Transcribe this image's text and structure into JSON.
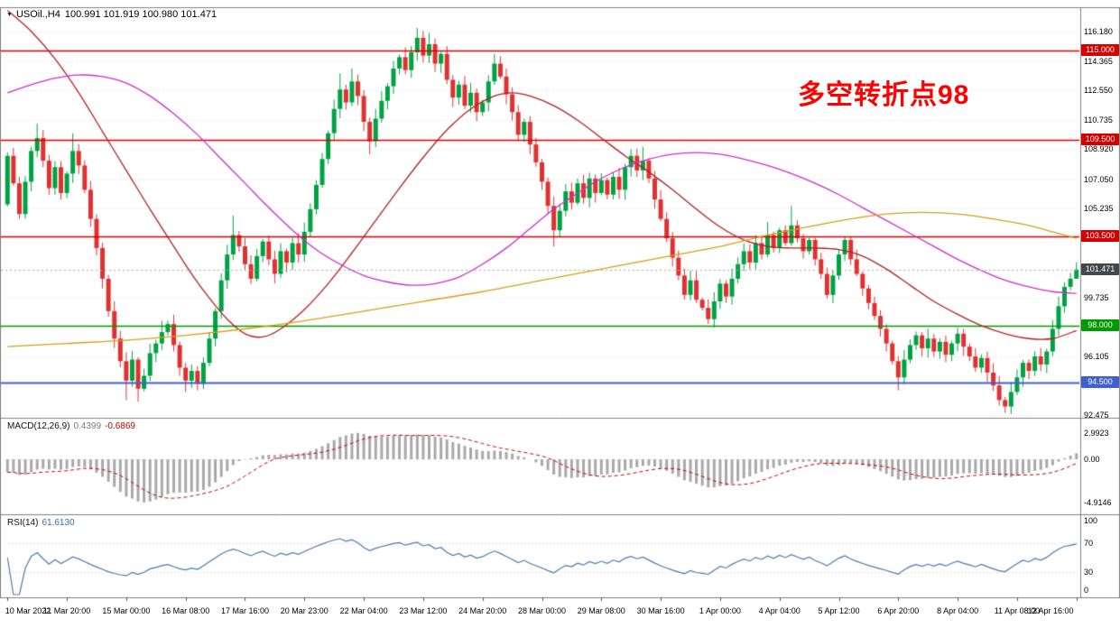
{
  "header": {
    "symbol_period": "USOil.,H4",
    "ohlc": "100.991 101.919 100.980 101.471"
  },
  "annotation": {
    "text": "多空转折点98"
  },
  "macd_label": {
    "name": "MACD(12,26,9)",
    "main": "0.4399",
    "signal": "-0.6869"
  },
  "rsi_label": {
    "name": "RSI(14)",
    "value": "61.6130"
  },
  "colors": {
    "up": "#00A243",
    "down": "#E03131",
    "ma_red": "#B22222",
    "ma_magenta": "#CC2ECC",
    "ma_orange": "#D4A017",
    "hline_red": "#D40000",
    "hline_green": "#009900",
    "hline_blue": "#4060D0",
    "macd_hist": "#A9A9A9",
    "macd_signal": "#CC0000",
    "rsi_line": "#4A7AB5",
    "annotation": "#FF0000",
    "badge_current": "#44484C",
    "grid": "#DDDDDD",
    "frame": "#7F7F7F"
  },
  "chart_data": {
    "type": "candlestick",
    "title": "USOil H4 candlestick chart with MACD(12,26,9) and RSI(14)",
    "symbol": "USOil",
    "timeframe": "H4",
    "y_axis_ticks": [
      "116.180",
      "114.365",
      "112.550",
      "110.735",
      "108.920",
      "107.050",
      "105.235",
      "99.735",
      "96.105",
      "92.475"
    ],
    "y_range": [
      92.36,
      116.74
    ],
    "x_tick_labels": [
      "10 Mar 2022",
      "11 Mar 20:00",
      "15 Mar 00:00",
      "16 Mar 08:00",
      "17 Mar 16:00",
      "20 Mar 23:00",
      "22 Mar 04:00",
      "23 Mar 12:00",
      "24 Mar 20:00",
      "28 Mar 00:00",
      "29 Mar 08:00",
      "30 Mar 16:00",
      "1 Apr 00:00",
      "4 Apr 04:00",
      "5 Apr 12:00",
      "6 Apr 20:00",
      "8 Apr 04:00",
      "11 Apr 08:00",
      "12 Apr 16:00"
    ],
    "current_price": {
      "value": 101.471,
      "label": "101.471"
    },
    "horizontal_lines": [
      {
        "price": 115.0,
        "label": "115.000",
        "color_key": "hline_red"
      },
      {
        "price": 109.5,
        "label": "109.500",
        "color_key": "hline_red"
      },
      {
        "price": 103.5,
        "label": "103.500",
        "color_key": "hline_red"
      },
      {
        "price": 98.0,
        "label": "98.000",
        "color_key": "hline_green"
      },
      {
        "price": 94.5,
        "label": "94.500",
        "color_key": "hline_blue"
      }
    ],
    "candles": {
      "first_open": 105.5,
      "closes": [
        108.5,
        106.8,
        104.9,
        106.9,
        108.8,
        109.6,
        108.2,
        106.5,
        107.8,
        106.2,
        107.4,
        108.8,
        107.9,
        106.4,
        104.6,
        102.8,
        100.9,
        98.9,
        97.2,
        95.8,
        94.6,
        95.9,
        94.1,
        94.9,
        96.3,
        96.9,
        97.6,
        98.1,
        96.8,
        95.4,
        94.6,
        95.2,
        94.4,
        95.7,
        97.2,
        98.9,
        100.8,
        102.4,
        103.6,
        102.9,
        101.8,
        100.9,
        102.3,
        103.2,
        102.1,
        101.2,
        102.6,
        101.9,
        103.1,
        102.4,
        103.8,
        105.2,
        106.7,
        108.3,
        109.9,
        111.4,
        112.6,
        111.8,
        113.1,
        112.2,
        110.6,
        109.4,
        110.8,
        111.9,
        112.8,
        113.9,
        114.6,
        113.8,
        114.9,
        115.8,
        114.7,
        115.4,
        114.2,
        114.8,
        113.2,
        112.1,
        112.9,
        111.6,
        112.4,
        111.2,
        111.8,
        113.1,
        114.2,
        113.4,
        112.3,
        111.2,
        109.8,
        110.6,
        109.2,
        108.1,
        106.9,
        105.4,
        103.9,
        105.1,
        106.3,
        105.6,
        106.8,
        105.9,
        107.1,
        106.2,
        107.0,
        106.1,
        107.2,
        106.4,
        107.8,
        108.5,
        107.6,
        108.2,
        107.1,
        105.8,
        104.6,
        103.4,
        102.2,
        101.1,
        99.9,
        100.8,
        99.6,
        99.1,
        98.4,
        99.5,
        100.6,
        99.8,
        100.9,
        101.8,
        102.6,
        101.9,
        103.1,
        102.4,
        103.6,
        102.8,
        103.9,
        103.1,
        104.2,
        103.4,
        102.6,
        103.3,
        102.1,
        101.2,
        99.9,
        101.1,
        102.4,
        103.3,
        102.1,
        101.2,
        100.3,
        99.4,
        98.6,
        97.8,
        96.9,
        95.8,
        94.8,
        95.9,
        96.8,
        97.4,
        96.6,
        97.2,
        96.4,
        97.0,
        96.2,
        96.9,
        97.5,
        96.7,
        96.1,
        95.4,
        96.0,
        95.1,
        94.3,
        93.4,
        93.0,
        93.9,
        94.8,
        95.7,
        95.2,
        96.1,
        95.6,
        96.4,
        97.8,
        99.2,
        100.4,
        100.9,
        101.471
      ],
      "wick_overrides": {
        "5": {
          "h": 110.5
        },
        "11": {
          "h": 109.9
        },
        "20": {
          "l": 93.4
        },
        "22": {
          "l": 93.3
        },
        "26": {
          "h": 98.3
        },
        "30": {
          "l": 93.9
        },
        "32": {
          "l": 94.0
        },
        "38": {
          "h": 104.8
        },
        "56": {
          "h": 113.6
        },
        "58": {
          "h": 113.9
        },
        "61": {
          "l": 108.6
        },
        "69": {
          "h": 116.4
        },
        "71": {
          "h": 116.1
        },
        "82": {
          "h": 114.8
        },
        "92": {
          "l": 102.9
        },
        "105": {
          "h": 108.9
        },
        "107": {
          "h": 109.05
        },
        "128": {
          "h": 104.4
        },
        "132": {
          "h": 105.4
        },
        "141": {
          "h": 103.45
        },
        "150": {
          "l": 94.0
        },
        "168": {
          "l": 92.6
        },
        "180": {
          "h": 101.919,
          "l": 100.9
        }
      }
    },
    "moving_averages": [
      {
        "name": "medium-red-ma",
        "color_key": "ma_red",
        "points": [
          [
            0,
            117.5
          ],
          [
            4,
            116.2
          ],
          [
            8,
            114.5
          ],
          [
            12,
            112.4
          ],
          [
            16,
            110.0
          ],
          [
            20,
            107.6
          ],
          [
            24,
            105.2
          ],
          [
            28,
            102.9
          ],
          [
            31,
            101.2
          ],
          [
            34,
            99.7
          ],
          [
            37,
            98.4
          ],
          [
            40,
            97.5
          ],
          [
            43,
            97.3
          ],
          [
            46,
            97.8
          ],
          [
            50,
            99.0
          ],
          [
            54,
            100.6
          ],
          [
            58,
            102.5
          ],
          [
            62,
            104.5
          ],
          [
            66,
            106.5
          ],
          [
            70,
            108.4
          ],
          [
            74,
            110.1
          ],
          [
            78,
            111.4
          ],
          [
            82,
            112.2
          ],
          [
            85,
            112.4
          ],
          [
            88,
            112.2
          ],
          [
            92,
            111.6
          ],
          [
            96,
            110.7
          ],
          [
            100,
            109.6
          ],
          [
            104,
            108.5
          ],
          [
            108,
            107.5
          ],
          [
            112,
            106.4
          ],
          [
            116,
            105.2
          ],
          [
            120,
            104.1
          ],
          [
            124,
            103.3
          ],
          [
            128,
            102.9
          ],
          [
            132,
            102.8
          ],
          [
            136,
            102.8
          ],
          [
            140,
            102.7
          ],
          [
            144,
            102.3
          ],
          [
            148,
            101.5
          ],
          [
            152,
            100.5
          ],
          [
            156,
            99.5
          ],
          [
            160,
            98.7
          ],
          [
            164,
            98.0
          ],
          [
            168,
            97.5
          ],
          [
            172,
            97.2
          ],
          [
            176,
            97.2
          ],
          [
            180,
            97.7
          ]
        ]
      },
      {
        "name": "slow-magenta-ma",
        "color_key": "ma_magenta",
        "points": [
          [
            0,
            112.4
          ],
          [
            4,
            112.9
          ],
          [
            8,
            113.3
          ],
          [
            12,
            113.5
          ],
          [
            16,
            113.4
          ],
          [
            20,
            113.0
          ],
          [
            24,
            112.2
          ],
          [
            28,
            111.1
          ],
          [
            32,
            109.8
          ],
          [
            36,
            108.3
          ],
          [
            40,
            106.8
          ],
          [
            44,
            105.3
          ],
          [
            48,
            103.9
          ],
          [
            52,
            102.7
          ],
          [
            56,
            101.8
          ],
          [
            60,
            101.1
          ],
          [
            64,
            100.7
          ],
          [
            68,
            100.5
          ],
          [
            72,
            100.6
          ],
          [
            76,
            101.0
          ],
          [
            80,
            101.8
          ],
          [
            84,
            102.8
          ],
          [
            88,
            104.0
          ],
          [
            92,
            105.2
          ],
          [
            96,
            106.2
          ],
          [
            100,
            107.1
          ],
          [
            104,
            107.8
          ],
          [
            108,
            108.3
          ],
          [
            112,
            108.6
          ],
          [
            116,
            108.7
          ],
          [
            120,
            108.6
          ],
          [
            124,
            108.3
          ],
          [
            128,
            107.9
          ],
          [
            132,
            107.4
          ],
          [
            136,
            106.8
          ],
          [
            140,
            106.1
          ],
          [
            144,
            105.3
          ],
          [
            148,
            104.5
          ],
          [
            152,
            103.7
          ],
          [
            156,
            102.9
          ],
          [
            160,
            102.1
          ],
          [
            164,
            101.4
          ],
          [
            168,
            100.8
          ],
          [
            172,
            100.4
          ],
          [
            176,
            100.1
          ],
          [
            180,
            100.0
          ]
        ]
      },
      {
        "name": "long-orange-ma",
        "color_key": "ma_orange",
        "points": [
          [
            0,
            96.7
          ],
          [
            10,
            96.9
          ],
          [
            20,
            97.1
          ],
          [
            30,
            97.4
          ],
          [
            40,
            97.8
          ],
          [
            50,
            98.3
          ],
          [
            60,
            98.9
          ],
          [
            70,
            99.5
          ],
          [
            80,
            100.1
          ],
          [
            90,
            100.8
          ],
          [
            100,
            101.5
          ],
          [
            110,
            102.2
          ],
          [
            120,
            102.9
          ],
          [
            128,
            103.6
          ],
          [
            136,
            104.2
          ],
          [
            142,
            104.6
          ],
          [
            148,
            104.9
          ],
          [
            154,
            105.0
          ],
          [
            160,
            104.9
          ],
          [
            166,
            104.6
          ],
          [
            172,
            104.2
          ],
          [
            176,
            103.8
          ],
          [
            180,
            103.4
          ]
        ]
      }
    ],
    "indicators": [
      {
        "type": "MACD",
        "params": [
          12,
          26,
          9
        ],
        "main_value": 0.4399,
        "signal_value": -0.6869,
        "axis_ticks": [
          "2.9923",
          "0.00",
          "-4.9146"
        ]
      },
      {
        "type": "RSI",
        "params": [
          14
        ],
        "value": 61.613,
        "axis_ticks": [
          "100",
          "70",
          "30",
          "0"
        ],
        "levels": [
          70,
          30
        ]
      }
    ]
  }
}
